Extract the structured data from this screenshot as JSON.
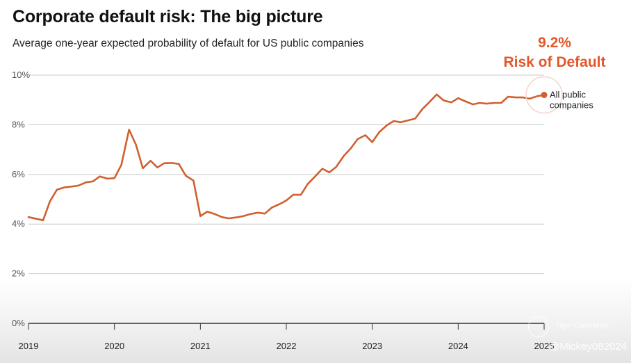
{
  "header": {
    "title": "Corporate default risk: The big picture",
    "subtitle": "Average one-year expected probability of default for US public companies"
  },
  "callout": {
    "value": "9.2%",
    "label": "Risk of Default"
  },
  "legend": {
    "line1": "All public",
    "line2": "companies"
  },
  "watermark": {
    "community": "Tiger Community",
    "user": "@Mickey082024"
  },
  "colors": {
    "line": "#d0602e",
    "callout": "#e2572c",
    "grid": "#c8c8c8",
    "axis": "#333333"
  },
  "chart_data": {
    "type": "line",
    "title": "Corporate default risk: The big picture",
    "subtitle": "Average one-year expected probability of default for US public companies",
    "xlabel": "",
    "ylabel": "",
    "ylim": [
      0,
      10
    ],
    "xlim": [
      2019,
      2025
    ],
    "y_ticks": [
      0,
      2,
      4,
      6,
      8,
      10
    ],
    "y_tick_labels": [
      "0%",
      "2%",
      "4%",
      "6%",
      "8%",
      "10%"
    ],
    "x_ticks": [
      2019,
      2020,
      2021,
      2022,
      2023,
      2024,
      2025
    ],
    "x_tick_labels": [
      "2019",
      "2020",
      "2021",
      "2022",
      "2023",
      "2024",
      "2025"
    ],
    "grid": true,
    "series": [
      {
        "name": "All public companies",
        "x": [
          2019.0,
          2019.08,
          2019.17,
          2019.25,
          2019.33,
          2019.42,
          2019.5,
          2019.58,
          2019.67,
          2019.75,
          2019.83,
          2019.92,
          2020.0,
          2020.08,
          2020.17,
          2020.25,
          2020.33,
          2020.42,
          2020.5,
          2020.58,
          2020.67,
          2020.75,
          2020.83,
          2020.92,
          2021.0,
          2021.08,
          2021.17,
          2021.25,
          2021.33,
          2021.42,
          2021.5,
          2021.58,
          2021.67,
          2021.75,
          2021.83,
          2021.92,
          2022.0,
          2022.08,
          2022.17,
          2022.25,
          2022.33,
          2022.42,
          2022.5,
          2022.58,
          2022.67,
          2022.75,
          2022.83,
          2022.92,
          2023.0,
          2023.08,
          2023.17,
          2023.25,
          2023.33,
          2023.42,
          2023.5,
          2023.58,
          2023.67,
          2023.75,
          2023.83,
          2023.92,
          2024.0,
          2024.08,
          2024.17,
          2024.25,
          2024.33,
          2024.42,
          2024.5,
          2024.58,
          2024.67,
          2024.75,
          2024.83,
          2024.92,
          2025.0
        ],
        "values": [
          4.28,
          4.22,
          4.15,
          4.92,
          5.38,
          5.48,
          5.51,
          5.55,
          5.68,
          5.72,
          5.92,
          5.83,
          5.85,
          6.38,
          7.8,
          7.2,
          6.25,
          6.55,
          6.28,
          6.45,
          6.46,
          6.42,
          5.95,
          5.75,
          4.32,
          4.5,
          4.4,
          4.28,
          4.23,
          4.27,
          4.32,
          4.4,
          4.46,
          4.42,
          4.66,
          4.8,
          4.95,
          5.18,
          5.18,
          5.62,
          5.9,
          6.23,
          6.08,
          6.3,
          6.75,
          7.05,
          7.42,
          7.58,
          7.3,
          7.7,
          7.98,
          8.15,
          8.1,
          8.18,
          8.25,
          8.62,
          8.93,
          9.22,
          8.98,
          8.9,
          9.07,
          8.95,
          8.82,
          8.88,
          8.85,
          8.88,
          8.88,
          9.13,
          9.1,
          9.1,
          9.05,
          9.15,
          9.2
        ]
      }
    ],
    "annotations": [
      {
        "text": "9.2%",
        "x": 2025.0,
        "y": 9.2
      },
      {
        "text": "Risk of Default",
        "x": 2025.0,
        "y": 9.2
      }
    ]
  }
}
